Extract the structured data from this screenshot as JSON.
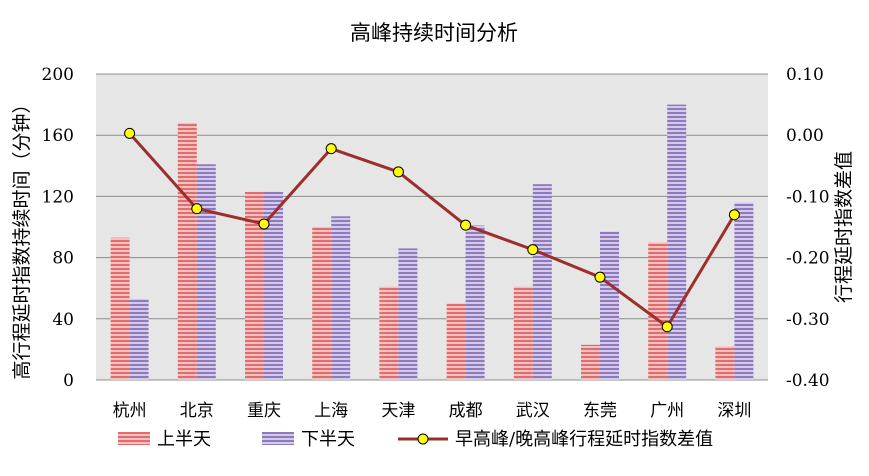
{
  "chart_data": {
    "type": "bar",
    "title": "高峰持续时间分析",
    "categories": [
      "杭州",
      "北京",
      "重庆",
      "上海",
      "天津",
      "成都",
      "武汉",
      "东莞",
      "广州",
      "深圳"
    ],
    "series": [
      {
        "name": "上半天",
        "type": "bar",
        "axis": "left",
        "values": [
          93,
          168,
          123,
          100,
          61,
          50,
          61,
          23,
          90,
          22
        ]
      },
      {
        "name": "下半天",
        "type": "bar",
        "axis": "left",
        "values": [
          53,
          141,
          123,
          107,
          86,
          101,
          128,
          97,
          180,
          116
        ]
      },
      {
        "name": "早高峰/晚高峰行程延时指数差值",
        "type": "line",
        "axis": "right",
        "values": [
          0.003,
          -0.12,
          -0.145,
          -0.022,
          -0.06,
          -0.147,
          -0.187,
          -0.232,
          -0.313,
          -0.13
        ]
      }
    ],
    "ylabel": "高行程延时指数持续时间（分钟）",
    "y2label": "行程延时指数差值",
    "ylim": [
      0,
      200
    ],
    "y2lim": [
      -0.4,
      0.1
    ],
    "yticks": [
      "0",
      "40",
      "80",
      "120",
      "160",
      "200"
    ],
    "y2ticks": [
      "-0.40",
      "-0.30",
      "-0.20",
      "-0.10",
      "0.00",
      "0.10"
    ],
    "grid": true,
    "legend_position": "bottom",
    "colors": {
      "upper": "#e26c6c",
      "lower": "#9a84c6",
      "line": "#9c2f2b",
      "marker_fill": "#ffff00",
      "plot_bg": "#e6e6e6",
      "grid": "#8c8c8c"
    }
  }
}
